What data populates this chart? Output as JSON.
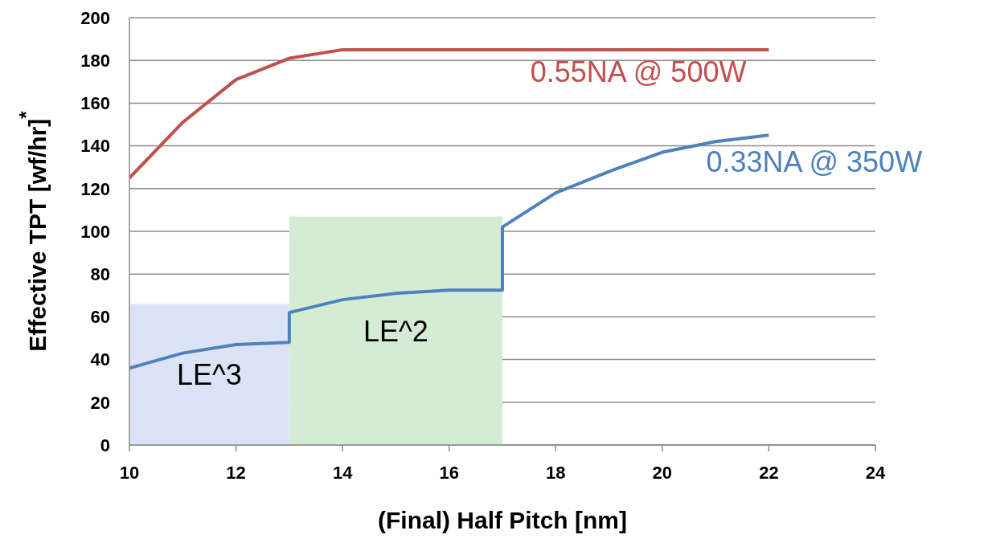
{
  "chart_data": {
    "type": "line",
    "xlabel": "(Final) Half Pitch [nm]",
    "ylabel": "Effective TPT [wf/hr]$^{*}$",
    "xlim": [
      10,
      24
    ],
    "xticks": [
      10,
      12,
      14,
      16,
      18,
      20,
      22,
      24
    ],
    "ylim": [
      0,
      200
    ],
    "yticks": [
      0,
      20,
      40,
      60,
      80,
      100,
      120,
      140,
      160,
      180,
      200
    ],
    "grid": "y",
    "series": [
      {
        "type": "area",
        "color": "#dde3f7",
        "x": [
          10,
          13
        ],
        "values": [
          66,
          66
        ]
      },
      {
        "type": "area",
        "color": "#d5ecd4",
        "x": [
          13,
          17
        ],
        "values": [
          107,
          107
        ]
      },
      {
        "name": "0.55NA @ 500W",
        "color": "#c0504d",
        "x": [
          10,
          11,
          12,
          13,
          14,
          15,
          16,
          17,
          18,
          19,
          20,
          21,
          22
        ],
        "values": [
          125,
          151,
          171,
          181,
          185,
          185,
          185,
          185,
          185,
          185,
          185,
          185,
          185
        ]
      },
      {
        "name": "0.33NA @ 350W",
        "color": "#4f81bd",
        "x": [
          10,
          11,
          12,
          13,
          13,
          14,
          15,
          16,
          17,
          17,
          18,
          19,
          20,
          21,
          22
        ],
        "values": [
          36,
          43,
          47,
          48,
          62,
          68,
          71,
          72.5,
          72.5,
          102,
          118,
          128,
          137,
          142,
          145
        ]
      }
    ],
    "annotations": [
      "LE^3",
      "LE^2"
    ]
  }
}
